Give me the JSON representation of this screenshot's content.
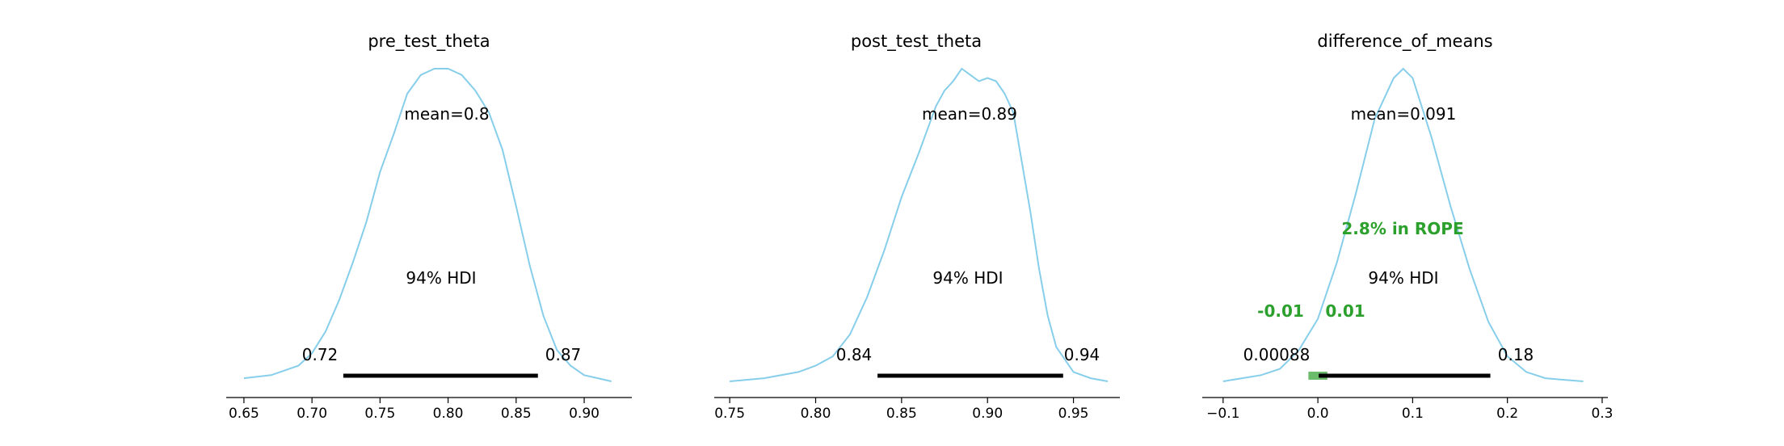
{
  "chart_data": [
    {
      "type": "area",
      "title": "pre_test_theta",
      "xlabel": "",
      "ylabel": "",
      "xlim": [
        0.637,
        0.935
      ],
      "x_ticks": [
        0.65,
        0.7,
        0.75,
        0.8,
        0.85,
        0.9
      ],
      "x_tick_labels": [
        "0.65",
        "0.70",
        "0.75",
        "0.80",
        "0.85",
        "0.90"
      ],
      "mean_label": "mean=0.8",
      "hdi_label": "94% HDI",
      "hdi": [
        0.723,
        0.866
      ],
      "hdi_labels": [
        "0.72",
        "0.87"
      ],
      "rope": null,
      "density": {
        "x": [
          0.65,
          0.67,
          0.69,
          0.7,
          0.71,
          0.72,
          0.73,
          0.74,
          0.75,
          0.76,
          0.77,
          0.78,
          0.79,
          0.8,
          0.81,
          0.82,
          0.83,
          0.84,
          0.85,
          0.86,
          0.87,
          0.88,
          0.89,
          0.9,
          0.91,
          0.92
        ],
        "y": [
          0.01,
          0.02,
          0.05,
          0.09,
          0.16,
          0.26,
          0.38,
          0.51,
          0.67,
          0.79,
          0.92,
          0.98,
          1.0,
          1.0,
          0.98,
          0.93,
          0.86,
          0.74,
          0.56,
          0.37,
          0.21,
          0.1,
          0.05,
          0.02,
          0.01,
          0.0
        ]
      },
      "colors": {
        "kde": "#87ceeb",
        "hdi": "#000000"
      }
    },
    {
      "type": "area",
      "title": "post_test_theta",
      "xlabel": "",
      "ylabel": "",
      "xlim": [
        0.741,
        0.977
      ],
      "x_ticks": [
        0.75,
        0.8,
        0.85,
        0.9,
        0.95
      ],
      "x_tick_labels": [
        "0.75",
        "0.80",
        "0.85",
        "0.90",
        "0.95"
      ],
      "mean_label": "mean=0.89",
      "hdi_label": "94% HDI",
      "hdi": [
        0.836,
        0.944
      ],
      "hdi_labels": [
        "0.84",
        "0.94"
      ],
      "rope": null,
      "density": {
        "x": [
          0.75,
          0.77,
          0.79,
          0.8,
          0.81,
          0.82,
          0.83,
          0.84,
          0.85,
          0.86,
          0.87,
          0.875,
          0.88,
          0.885,
          0.89,
          0.895,
          0.9,
          0.905,
          0.91,
          0.915,
          0.92,
          0.925,
          0.93,
          0.935,
          0.94,
          0.95,
          0.96,
          0.97
        ],
        "y": [
          0.0,
          0.01,
          0.03,
          0.05,
          0.08,
          0.15,
          0.27,
          0.42,
          0.59,
          0.73,
          0.88,
          0.93,
          0.96,
          1.0,
          0.98,
          0.96,
          0.97,
          0.96,
          0.92,
          0.86,
          0.7,
          0.54,
          0.36,
          0.21,
          0.11,
          0.03,
          0.01,
          0.0
        ]
      },
      "colors": {
        "kde": "#87ceeb",
        "hdi": "#000000"
      }
    },
    {
      "type": "area",
      "title": "difference_of_means",
      "xlabel": "",
      "ylabel": "",
      "xlim": [
        -0.122,
        0.306
      ],
      "x_ticks": [
        -0.1,
        0.0,
        0.1,
        0.2,
        0.3
      ],
      "x_tick_labels": [
        "−0.1",
        "0.0",
        "0.1",
        "0.2",
        "0.3"
      ],
      "mean_label": "mean=0.091",
      "hdi_label": "94% HDI",
      "hdi": [
        0.00088,
        0.182
      ],
      "hdi_labels": [
        "0.00088",
        "0.18"
      ],
      "rope": [
        -0.01,
        0.01
      ],
      "rope_labels": [
        "-0.01",
        "0.01"
      ],
      "rope_text": "2.8% in ROPE",
      "density": {
        "x": [
          -0.1,
          -0.08,
          -0.06,
          -0.04,
          -0.02,
          0.0,
          0.02,
          0.04,
          0.06,
          0.08,
          0.09,
          0.1,
          0.12,
          0.14,
          0.16,
          0.18,
          0.2,
          0.22,
          0.24,
          0.26,
          0.28
        ],
        "y": [
          0.0,
          0.01,
          0.02,
          0.04,
          0.1,
          0.2,
          0.38,
          0.6,
          0.84,
          0.97,
          1.0,
          0.97,
          0.78,
          0.56,
          0.36,
          0.19,
          0.08,
          0.03,
          0.01,
          0.005,
          0.0
        ]
      },
      "colors": {
        "kde": "#87ceeb",
        "hdi": "#000000",
        "rope": "#2ca02c"
      }
    }
  ]
}
